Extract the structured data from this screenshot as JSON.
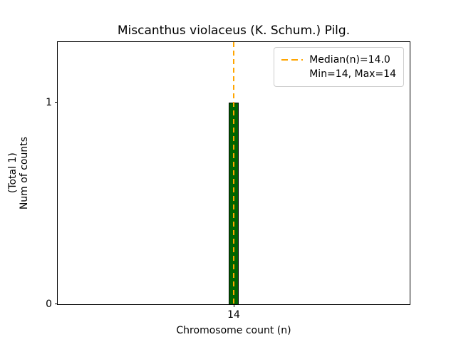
{
  "chart_data": {
    "type": "bar",
    "title": "Miscanthus violaceus (K. Schum.) Pilg.",
    "xlabel": "Chromosome count (n)",
    "ylabel": "Num of counts",
    "ylabel_secondary": "(Total 1)",
    "categories": [
      14
    ],
    "values": [
      1
    ],
    "x_ticks": [
      "14"
    ],
    "y_ticks": [
      "0",
      "1"
    ],
    "ylim": [
      0,
      1.3
    ],
    "grid": false,
    "bar_color": "#006400",
    "bar_edge_color": "#000000",
    "median_line": {
      "value": 14.0,
      "color": "#ffa500",
      "style": "dashed"
    },
    "legend": {
      "position": "upper-right",
      "entries": [
        {
          "symbol": "dashed-line",
          "color": "#ffa500",
          "label": "Median(n)=14.0"
        },
        {
          "symbol": "none",
          "color": "",
          "label": "Min=14, Max=14"
        }
      ]
    }
  }
}
